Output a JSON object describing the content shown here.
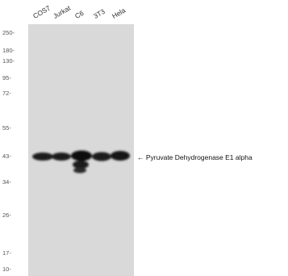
{
  "lanes": [
    "COS7",
    "Jurkat",
    "C6",
    "3T3",
    "Hela"
  ],
  "markers": [
    "250-",
    "180-",
    "130-",
    "95-",
    "72-",
    "55-",
    "43-",
    "34-",
    "26-",
    "17-",
    "10-"
  ],
  "target_label": "← Pyruvate Dehydrogenase E1 alpha"
}
